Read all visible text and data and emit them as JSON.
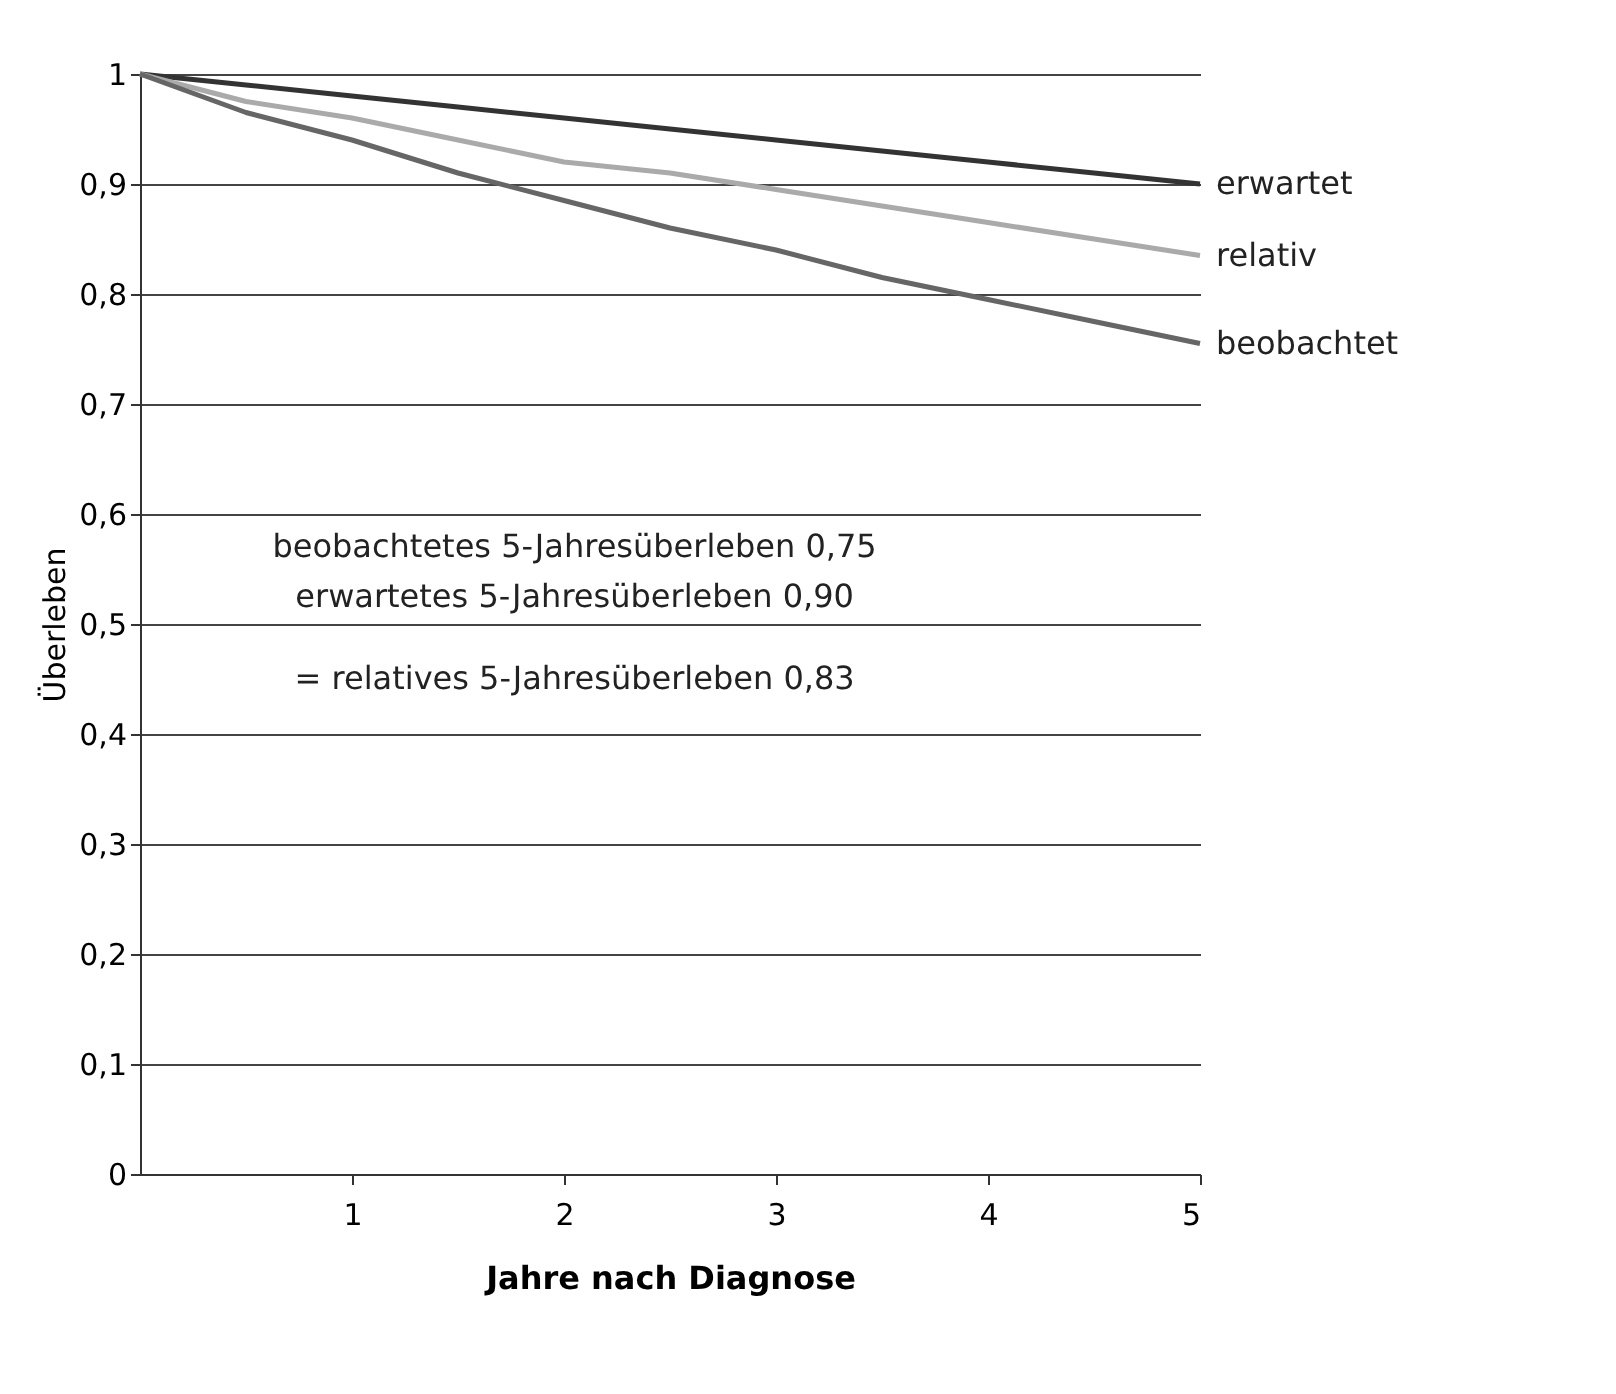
{
  "chart_data": {
    "type": "line",
    "xlabel": "Jahre nach Diagnose",
    "ylabel": "Überleben",
    "x": [
      0,
      0.5,
      1,
      1.5,
      2,
      2.5,
      3,
      3.5,
      4,
      4.5,
      5
    ],
    "series": [
      {
        "name": "erwartet",
        "color": "#333333",
        "values": [
          1,
          0.99,
          0.98,
          0.97,
          0.96,
          0.95,
          0.94,
          0.93,
          0.92,
          0.91,
          0.9
        ]
      },
      {
        "name": "relativ",
        "color": "#aaaaaa",
        "values": [
          1,
          0.975,
          0.96,
          0.94,
          0.92,
          0.91,
          0.895,
          0.88,
          0.865,
          0.85,
          0.835
        ]
      },
      {
        "name": "beobachtet",
        "color": "#666666",
        "values": [
          1,
          0.965,
          0.94,
          0.91,
          0.885,
          0.86,
          0.84,
          0.815,
          0.795,
          0.775,
          0.755
        ]
      }
    ],
    "xlim": [
      0,
      5
    ],
    "xticks": [
      1,
      2,
      3,
      4,
      5
    ],
    "ylim": [
      0,
      1
    ],
    "yticks": [
      0,
      {
        "value": 0.1,
        "label": "0,1"
      },
      {
        "value": 0.2,
        "label": "0,2"
      },
      {
        "value": 0.3,
        "label": "0,3"
      },
      {
        "value": 0.4,
        "label": "0,4"
      },
      {
        "value": 0.5,
        "label": "0,5"
      },
      {
        "value": 0.6,
        "label": "0,6"
      },
      {
        "value": 0.7,
        "label": "0,7"
      },
      {
        "value": 0.8,
        "label": "0,8"
      },
      {
        "value": 0.9,
        "label": "0,9"
      },
      1
    ],
    "annotations": [
      "beobachtetes 5-Jahresüberleben 0,75",
      "erwartetes 5-Jahresüberleben 0,90",
      "= relatives 5-Jahresüberleben 0,83"
    ],
    "grid": "y",
    "legend": false,
    "marker": "none",
    "line_style": "solid"
  }
}
